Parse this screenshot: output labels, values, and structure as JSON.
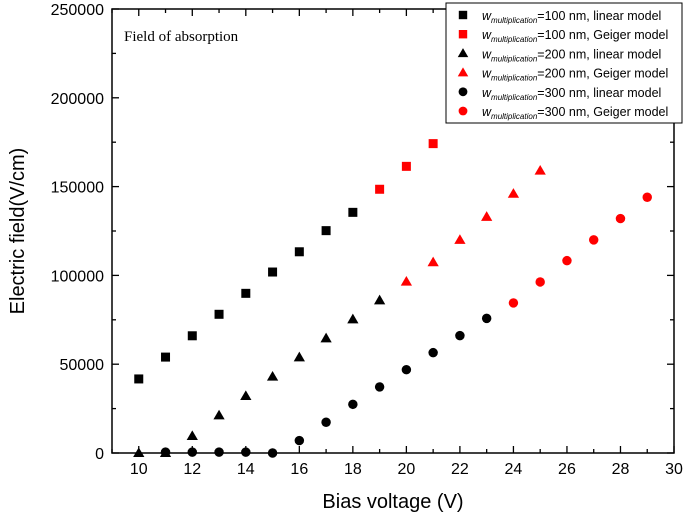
{
  "chart_data": {
    "type": "scatter",
    "xlabel": "Bias voltage (V)",
    "ylabel": "Electric field(V/cm)",
    "annotation": "Field of absorption",
    "xlim": [
      9,
      30
    ],
    "ylim": [
      0,
      250000
    ],
    "xticks": [
      10,
      12,
      14,
      16,
      18,
      20,
      22,
      24,
      26,
      28,
      30
    ],
    "yticks": [
      0,
      50000,
      100000,
      150000,
      200000,
      250000
    ],
    "grid": false,
    "legend_position": "top-right",
    "legend_var": "w",
    "legend_sub": "multiplication",
    "series": [
      {
        "name": "=100 nm, linear model",
        "marker": "square",
        "color": "#000000",
        "x": [
          10,
          11,
          12,
          13,
          14,
          15,
          16,
          17,
          18
        ],
        "y": [
          41700,
          54000,
          66000,
          78100,
          89900,
          101900,
          113300,
          125200,
          135500
        ]
      },
      {
        "name": "=100 nm, Geiger model",
        "marker": "square",
        "color": "#ff0000",
        "x": [
          19,
          20,
          21
        ],
        "y": [
          148500,
          161400,
          174200
        ]
      },
      {
        "name": "=200 nm, linear model",
        "marker": "triangle",
        "color": "#000000",
        "x": [
          10,
          11,
          12,
          13,
          14,
          15,
          16,
          17,
          18,
          19
        ],
        "y": [
          0,
          0,
          9600,
          21200,
          32100,
          43000,
          53900,
          64600,
          75300,
          86000
        ]
      },
      {
        "name": "=200 nm, Geiger model",
        "marker": "triangle",
        "color": "#ff0000",
        "x": [
          20,
          21,
          22,
          23,
          24,
          25
        ],
        "y": [
          96500,
          107400,
          120000,
          133000,
          146000,
          159000
        ]
      },
      {
        "name": "=300 nm, linear model",
        "marker": "circle",
        "color": "#000000",
        "x": [
          11,
          12,
          13,
          14,
          15,
          16,
          17,
          18,
          19,
          20,
          21,
          22,
          23
        ],
        "y": [
          500,
          500,
          500,
          500,
          0,
          7000,
          17300,
          27400,
          37200,
          46900,
          56500,
          66100,
          75800
        ]
      },
      {
        "name": "=300 nm, Geiger model",
        "marker": "circle",
        "color": "#ff0000",
        "x": [
          24,
          25,
          26,
          27,
          28,
          29
        ],
        "y": [
          84500,
          96300,
          108300,
          120000,
          132000,
          144000
        ]
      }
    ]
  }
}
